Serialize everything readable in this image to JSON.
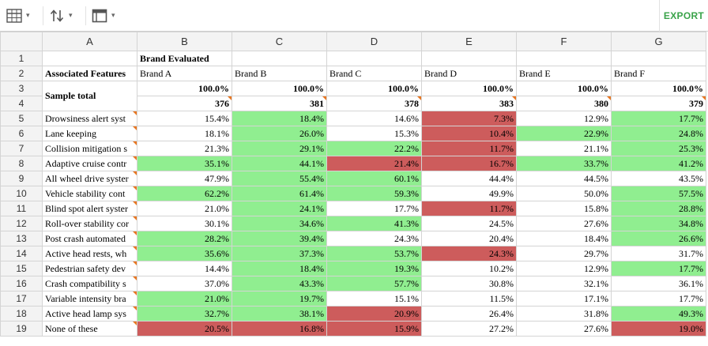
{
  "toolbar": {
    "export_label": "EXPORT",
    "caret": "▾"
  },
  "columns": [
    "A",
    "B",
    "C",
    "D",
    "E",
    "F",
    "G"
  ],
  "header_cells": {
    "brand_evaluated": "Brand Evaluated",
    "associated_features": "Associated Features",
    "sample_total": "Sample total",
    "brands": [
      "Brand A",
      "Brand B",
      "Brand C",
      "Brand D",
      "Brand E",
      "Brand F"
    ],
    "pct_total": [
      "100.0%",
      "100.0%",
      "100.0%",
      "100.0%",
      "100.0%",
      "100.0%"
    ],
    "counts": [
      "376",
      "381",
      "378",
      "383",
      "380",
      "379"
    ]
  },
  "features": [
    {
      "row": "5",
      "label": "Drowsiness alert syst",
      "values": [
        "15.4%",
        "18.4%",
        "14.6%",
        "7.3%",
        "12.9%",
        "17.7%"
      ],
      "status": [
        "",
        "g",
        "",
        "r",
        "",
        "g"
      ]
    },
    {
      "row": "6",
      "label": "Lane keeping",
      "values": [
        "18.1%",
        "26.0%",
        "15.3%",
        "10.4%",
        "22.9%",
        "24.8%"
      ],
      "status": [
        "",
        "g",
        "",
        "r",
        "g",
        "g"
      ]
    },
    {
      "row": "7",
      "label": "Collision mitigation s",
      "values": [
        "21.3%",
        "29.1%",
        "22.2%",
        "11.7%",
        "21.1%",
        "25.3%"
      ],
      "status": [
        "",
        "g",
        "g",
        "r",
        "",
        "g"
      ]
    },
    {
      "row": "8",
      "label": "Adaptive cruise contr",
      "values": [
        "35.1%",
        "44.1%",
        "21.4%",
        "16.7%",
        "33.7%",
        "41.2%"
      ],
      "status": [
        "g",
        "g",
        "r",
        "r",
        "g",
        "g"
      ]
    },
    {
      "row": "9",
      "label": "All wheel drive syster",
      "values": [
        "47.9%",
        "55.4%",
        "60.1%",
        "44.4%",
        "44.5%",
        "43.5%"
      ],
      "status": [
        "",
        "g",
        "g",
        "",
        "",
        ""
      ]
    },
    {
      "row": "10",
      "label": "Vehicle stability cont",
      "values": [
        "62.2%",
        "61.4%",
        "59.3%",
        "49.9%",
        "50.0%",
        "57.5%"
      ],
      "status": [
        "g",
        "g",
        "g",
        "",
        "",
        "g"
      ]
    },
    {
      "row": "11",
      "label": "Blind spot alert syster",
      "values": [
        "21.0%",
        "24.1%",
        "17.7%",
        "11.7%",
        "15.8%",
        "28.8%"
      ],
      "status": [
        "",
        "g",
        "",
        "r",
        "",
        "g"
      ]
    },
    {
      "row": "12",
      "label": "Roll-over stability cor",
      "values": [
        "30.1%",
        "34.6%",
        "41.3%",
        "24.5%",
        "27.6%",
        "34.8%"
      ],
      "status": [
        "",
        "g",
        "g",
        "",
        "",
        "g"
      ]
    },
    {
      "row": "13",
      "label": "Post crash automated",
      "values": [
        "28.2%",
        "39.4%",
        "24.3%",
        "20.4%",
        "18.4%",
        "26.6%"
      ],
      "status": [
        "g",
        "g",
        "",
        "",
        "",
        "g"
      ]
    },
    {
      "row": "14",
      "label": "Active head rests, wh",
      "values": [
        "35.6%",
        "37.3%",
        "53.7%",
        "24.3%",
        "29.7%",
        "31.7%"
      ],
      "status": [
        "g",
        "g",
        "g",
        "r",
        "",
        ""
      ]
    },
    {
      "row": "15",
      "label": "Pedestrian safety dev",
      "values": [
        "14.4%",
        "18.4%",
        "19.3%",
        "10.2%",
        "12.9%",
        "17.7%"
      ],
      "status": [
        "",
        "g",
        "g",
        "",
        "",
        "g"
      ]
    },
    {
      "row": "16",
      "label": "Crash compatibility s",
      "values": [
        "37.0%",
        "43.3%",
        "57.7%",
        "30.8%",
        "32.1%",
        "36.1%"
      ],
      "status": [
        "",
        "g",
        "g",
        "",
        "",
        ""
      ]
    },
    {
      "row": "17",
      "label": "Variable intensity bra",
      "values": [
        "21.0%",
        "19.7%",
        "15.1%",
        "11.5%",
        "17.1%",
        "17.7%"
      ],
      "status": [
        "g",
        "g",
        "",
        "",
        "",
        ""
      ]
    },
    {
      "row": "18",
      "label": "Active head lamp sys",
      "values": [
        "32.7%",
        "38.1%",
        "20.9%",
        "26.4%",
        "31.8%",
        "49.3%"
      ],
      "status": [
        "g",
        "g",
        "r",
        "",
        "",
        "g"
      ]
    },
    {
      "row": "19",
      "label": "None of these",
      "values": [
        "20.5%",
        "16.8%",
        "15.9%",
        "27.2%",
        "27.6%",
        "19.0%"
      ],
      "status": [
        "r",
        "r",
        "r",
        "",
        "",
        "r"
      ]
    }
  ],
  "colors": {
    "positive": "#90ee90",
    "negative": "#cd5c5c",
    "comment_flag": "#e87722",
    "export_green": "#3aa34a"
  },
  "icons": [
    "table-icon",
    "sort-icon",
    "layout-icon"
  ]
}
